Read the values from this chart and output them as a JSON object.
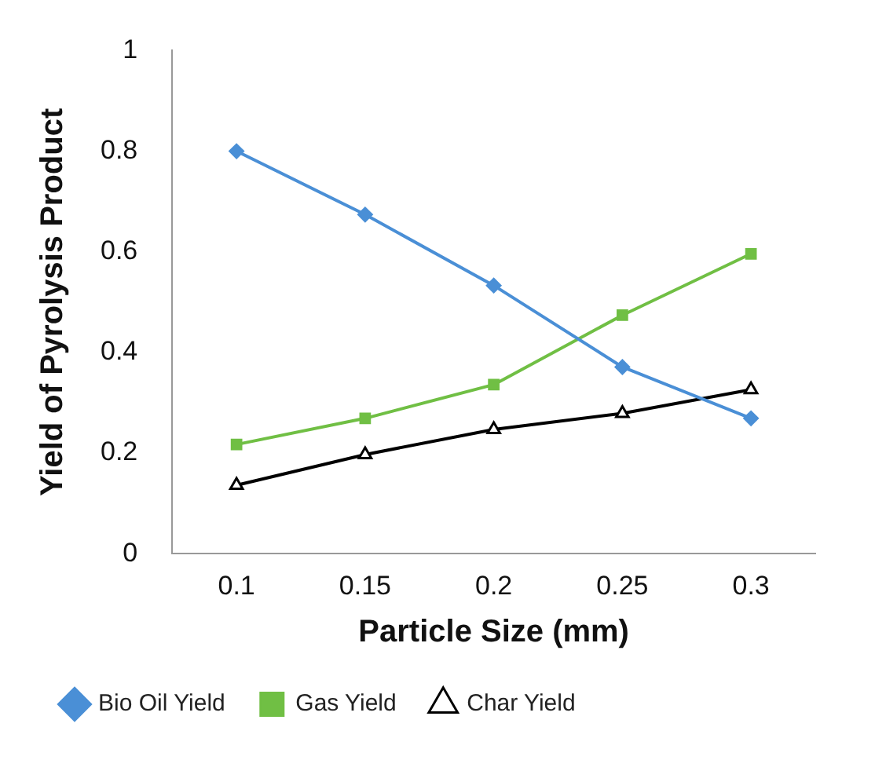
{
  "chart_data": {
    "type": "line",
    "xlabel": "Particle Size (mm)",
    "ylabel": "Yield of Pyrolysis Product",
    "categories": [
      "0.1",
      "0.15",
      "0.2",
      "0.25",
      "0.3"
    ],
    "series": [
      {
        "name": "Bio Oil Yield",
        "color": "#4a8fd6",
        "marker": "diamond",
        "values": [
          0.8,
          0.674,
          0.533,
          0.371,
          0.269
        ]
      },
      {
        "name": "Gas Yield",
        "color": "#70bf44",
        "marker": "square",
        "values": [
          0.217,
          0.269,
          0.336,
          0.474,
          0.596
        ]
      },
      {
        "name": "Char Yield",
        "color": "#000000",
        "marker": "triangle",
        "values": [
          0.136,
          0.197,
          0.247,
          0.279,
          0.326
        ]
      }
    ],
    "ylim": [
      0,
      1
    ],
    "yticks": [
      0,
      0.2,
      0.4,
      0.6,
      0.8,
      1
    ],
    "grid": false,
    "legend": "bottom",
    "line_style": "solid"
  }
}
